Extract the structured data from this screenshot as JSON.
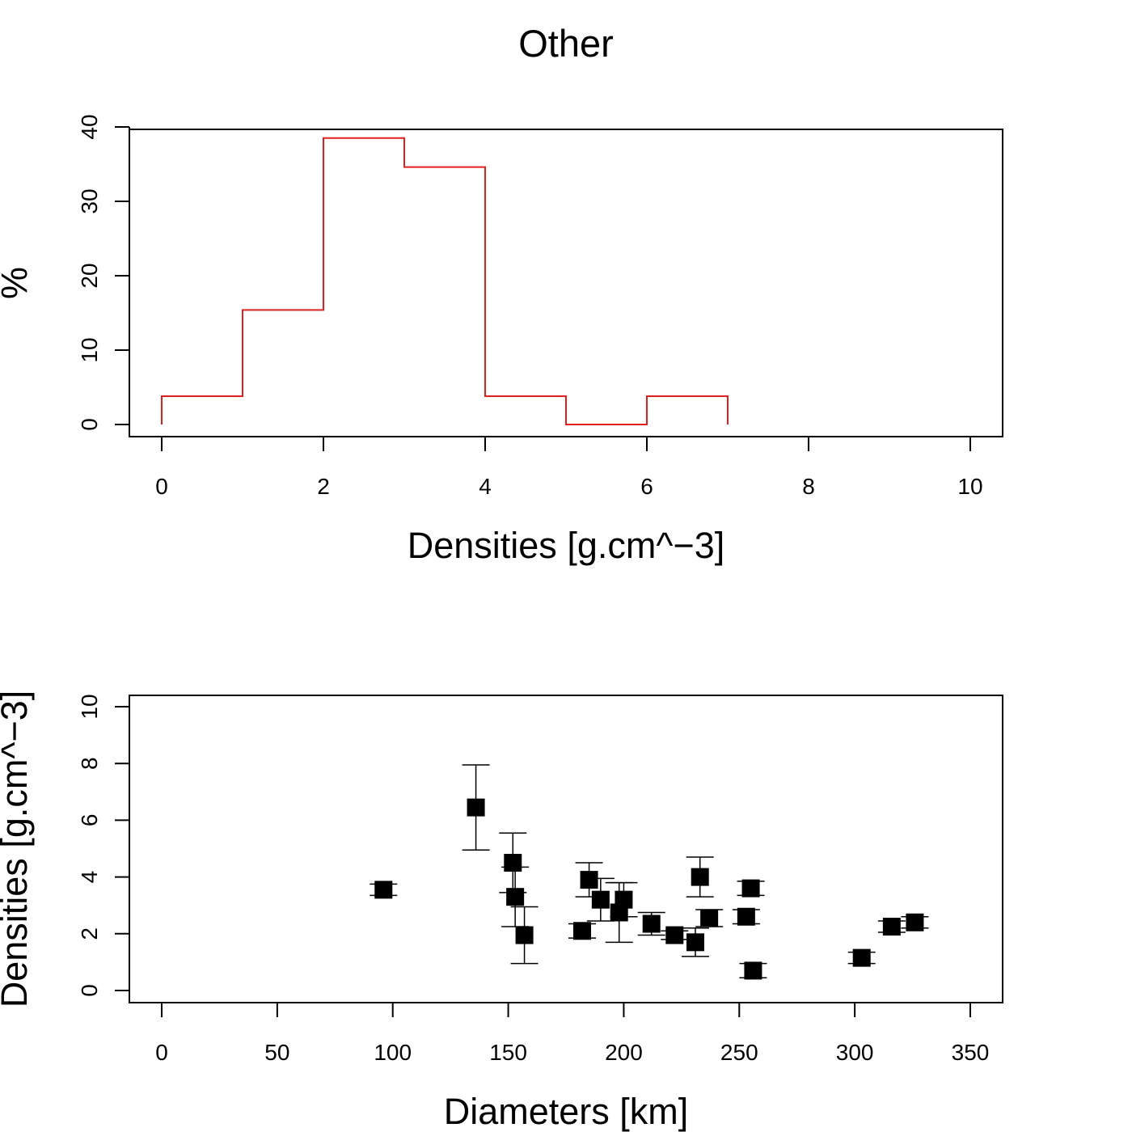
{
  "title": "Other",
  "chart_data": [
    {
      "type": "step",
      "title": "Other",
      "xlabel": "Densities [g.cm^−3]",
      "ylabel": "%",
      "xlim": [
        0,
        10
      ],
      "ylim": [
        0,
        40
      ],
      "xticks": [
        "0",
        "2",
        "4",
        "6",
        "8",
        "10"
      ],
      "yticks": [
        "0",
        "10",
        "20",
        "30",
        "40"
      ],
      "line_color": "#e0201e",
      "bins": [
        [
          0,
          1
        ],
        [
          1,
          2
        ],
        [
          2,
          3
        ],
        [
          3,
          4
        ],
        [
          4,
          5
        ],
        [
          5,
          6
        ],
        [
          6,
          7
        ]
      ],
      "values": [
        3.8,
        15.4,
        38.5,
        34.6,
        3.8,
        0,
        3.8
      ]
    },
    {
      "type": "scatter",
      "xlabel": "Diameters [km]",
      "ylabel": "Densities [g.cm^−3]",
      "xlim": [
        0,
        350
      ],
      "ylim": [
        0,
        10
      ],
      "xticks": [
        "0",
        "50",
        "100",
        "150",
        "200",
        "250",
        "300",
        "350"
      ],
      "yticks": [
        "0",
        "2",
        "4",
        "6",
        "8",
        "10"
      ],
      "marker": "filled-square",
      "marker_color": "#000000",
      "points": [
        {
          "x": 96,
          "y": 3.55,
          "err": 0.2
        },
        {
          "x": 136,
          "y": 6.45,
          "err": 1.5
        },
        {
          "x": 152,
          "y": 4.5,
          "err": 1.05
        },
        {
          "x": 153,
          "y": 3.3,
          "err": 1.05
        },
        {
          "x": 157,
          "y": 1.95,
          "err": 1.0
        },
        {
          "x": 182,
          "y": 2.1,
          "err": 0.25
        },
        {
          "x": 185,
          "y": 3.9,
          "err": 0.6
        },
        {
          "x": 190,
          "y": 3.2,
          "err": 0.75
        },
        {
          "x": 198,
          "y": 2.75,
          "err": 1.05
        },
        {
          "x": 200,
          "y": 3.2,
          "err": 0.6
        },
        {
          "x": 212,
          "y": 2.35,
          "err": 0.4
        },
        {
          "x": 222,
          "y": 1.95,
          "err": 0.15
        },
        {
          "x": 231,
          "y": 1.7,
          "err": 0.5
        },
        {
          "x": 233,
          "y": 4.0,
          "err": 0.7
        },
        {
          "x": 237,
          "y": 2.55,
          "err": 0.3
        },
        {
          "x": 253,
          "y": 2.6,
          "err": 0.25
        },
        {
          "x": 255,
          "y": 3.6,
          "err": 0.25
        },
        {
          "x": 256,
          "y": 0.7,
          "err": 0.25
        },
        {
          "x": 303,
          "y": 1.15,
          "err": 0.2
        },
        {
          "x": 316,
          "y": 2.25,
          "err": 0.2
        },
        {
          "x": 326,
          "y": 2.4,
          "err": 0.2
        }
      ]
    }
  ]
}
